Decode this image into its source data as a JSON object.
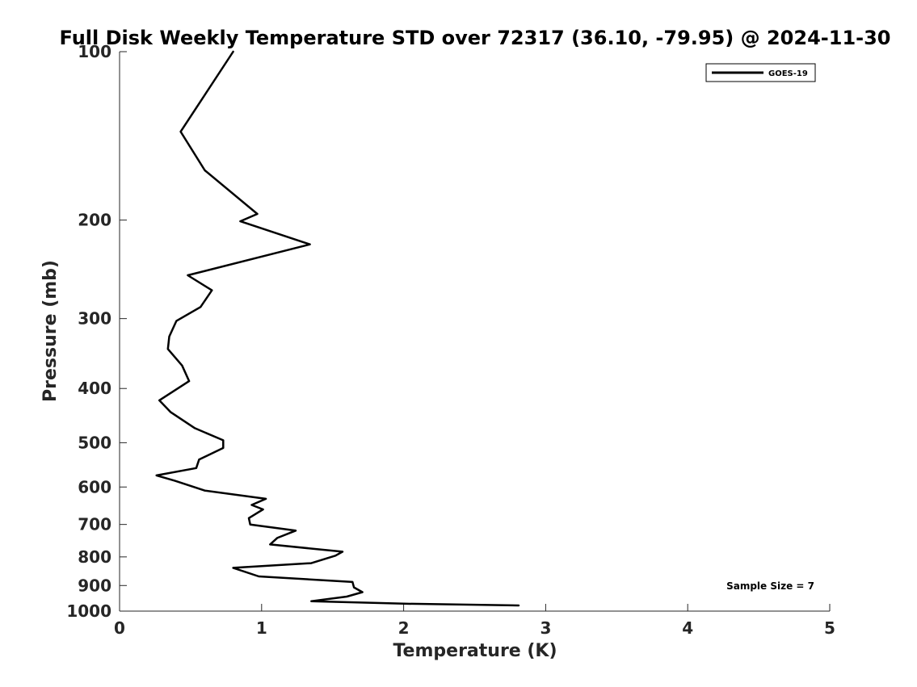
{
  "chart_data": {
    "type": "line",
    "title": "Full Disk Weekly Temperature STD over 72317 (36.10, -79.95) @ 2024-11-30",
    "xlabel": "Temperature (K)",
    "ylabel": "Pressure (mb)",
    "xlim": [
      0,
      5
    ],
    "ylim": [
      100,
      1000
    ],
    "y_scale": "log",
    "y_reversed": true,
    "x_ticks": [
      0,
      1,
      2,
      3,
      4,
      5
    ],
    "x_tick_labels": [
      "0",
      "1",
      "2",
      "3",
      "4",
      "5"
    ],
    "y_ticks": [
      100,
      200,
      300,
      400,
      500,
      600,
      700,
      800,
      900,
      1000
    ],
    "y_tick_labels": [
      "100",
      "200",
      "300",
      "400",
      "500",
      "600",
      "700",
      "800",
      "900",
      "1000"
    ],
    "grid": false,
    "legend_position": "top-right",
    "annotation": "Sample Size = 7",
    "series": [
      {
        "name": "GOES-19",
        "color": "#000000",
        "points": [
          [
            0.8,
            100
          ],
          [
            0.43,
            139
          ],
          [
            0.6,
            163
          ],
          [
            0.97,
            195
          ],
          [
            0.85,
            201
          ],
          [
            1.34,
            221
          ],
          [
            0.48,
            251
          ],
          [
            0.65,
            267
          ],
          [
            0.57,
            286
          ],
          [
            0.4,
            303
          ],
          [
            0.35,
            323
          ],
          [
            0.34,
            340
          ],
          [
            0.44,
            364
          ],
          [
            0.49,
            388
          ],
          [
            0.28,
            420
          ],
          [
            0.36,
            441
          ],
          [
            0.53,
            471
          ],
          [
            0.73,
            495
          ],
          [
            0.73,
            511
          ],
          [
            0.56,
            536
          ],
          [
            0.54,
            555
          ],
          [
            0.26,
            572
          ],
          [
            0.39,
            585
          ],
          [
            0.6,
            609
          ],
          [
            1.03,
            630
          ],
          [
            0.93,
            646
          ],
          [
            1.01,
            658
          ],
          [
            0.91,
            682
          ],
          [
            0.92,
            700
          ],
          [
            1.24,
            718
          ],
          [
            1.11,
            740
          ],
          [
            1.06,
            760
          ],
          [
            1.57,
            783
          ],
          [
            1.52,
            796
          ],
          [
            1.35,
            821
          ],
          [
            0.8,
            837
          ],
          [
            0.98,
            867
          ],
          [
            1.64,
            887
          ],
          [
            1.65,
            907
          ],
          [
            1.71,
            925
          ],
          [
            1.6,
            942
          ],
          [
            1.35,
            960
          ],
          [
            2.0,
            970
          ],
          [
            2.81,
            977
          ]
        ]
      }
    ]
  }
}
